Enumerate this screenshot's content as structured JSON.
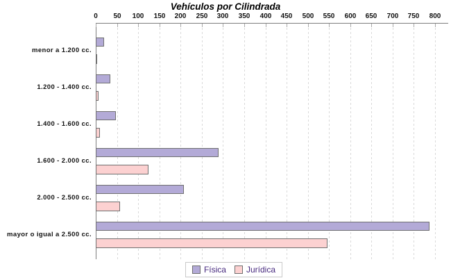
{
  "title": "Vehículos por Cilindrada",
  "chart_data": {
    "type": "bar",
    "orientation": "horizontal",
    "title": "Vehículos por Cilindrada",
    "categories": [
      "menor a 1.200 cc.",
      "1.200 - 1.400 cc.",
      "1.400 - 1.600 cc.",
      "1.600 - 2.000 cc.",
      "2.000 - 2.500 cc.",
      "mayor o igual a 2.500 cc."
    ],
    "series": [
      {
        "name": "Física",
        "color": "#b3aad7",
        "values": [
          20,
          35,
          47,
          290,
          207,
          787
        ]
      },
      {
        "name": "Jurídica",
        "color": "#fcd1d1",
        "values": [
          2,
          7,
          10,
          124,
          57,
          547
        ]
      }
    ],
    "xlim": [
      0,
      800
    ],
    "x_ticks": [
      0,
      50,
      100,
      150,
      200,
      250,
      300,
      350,
      400,
      450,
      500,
      550,
      600,
      650,
      700,
      750,
      800
    ],
    "grid": "vertical-dashed",
    "legend_position": "bottom"
  },
  "colors": {
    "fisica": "#b3aad7",
    "juridica": "#fcd1d1",
    "bar_border": "#6f6f6f",
    "axis": "#7d7d7d",
    "tick": "#a8a8a8",
    "gridline": "#d9d9d9",
    "legend_text": "#45277d",
    "legend_border": "#c9c9c9"
  }
}
